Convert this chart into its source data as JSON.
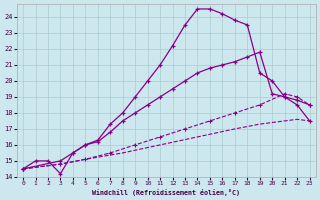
{
  "xlabel": "Windchill (Refroidissement éolien,°C)",
  "bg_color": "#cce8ee",
  "line_color": "#880088",
  "grid_color": "#aacccc",
  "xlim": [
    -0.5,
    23.5
  ],
  "ylim": [
    14,
    24.8
  ],
  "yticks": [
    14,
    15,
    16,
    17,
    18,
    19,
    20,
    21,
    22,
    23,
    24
  ],
  "xticks": [
    0,
    1,
    2,
    3,
    4,
    5,
    6,
    7,
    8,
    9,
    10,
    11,
    12,
    13,
    14,
    15,
    16,
    17,
    18,
    19,
    20,
    21,
    22,
    23
  ],
  "line1_x": [
    0,
    1,
    2,
    3,
    4,
    5,
    6,
    7,
    8,
    9,
    10,
    11,
    12,
    13,
    14,
    15,
    16,
    17,
    18,
    19,
    20,
    21,
    22,
    23
  ],
  "line1_y": [
    14.5,
    15.0,
    15.0,
    14.2,
    15.5,
    16.0,
    16.3,
    17.3,
    18.0,
    19.0,
    20.0,
    21.0,
    22.2,
    23.5,
    24.5,
    24.5,
    24.2,
    23.8,
    23.5,
    20.5,
    20.0,
    19.0,
    18.5,
    17.5
  ],
  "line2_x": [
    0,
    3,
    4,
    5,
    6,
    7,
    8,
    9,
    10,
    11,
    12,
    13,
    14,
    15,
    16,
    17,
    18,
    19,
    20,
    21,
    22,
    23
  ],
  "line2_y": [
    14.5,
    15.0,
    15.5,
    16.0,
    16.2,
    16.8,
    17.5,
    18.0,
    18.5,
    19.0,
    19.5,
    20.0,
    20.5,
    20.8,
    21.0,
    21.2,
    21.5,
    21.8,
    19.2,
    19.0,
    18.8,
    18.5
  ],
  "line3_x": [
    0,
    3,
    5,
    7,
    9,
    11,
    13,
    15,
    17,
    19,
    21,
    22,
    23
  ],
  "line3_y": [
    14.5,
    14.8,
    15.1,
    15.5,
    16.0,
    16.5,
    17.0,
    17.5,
    18.0,
    18.5,
    19.2,
    19.0,
    18.5
  ],
  "line4_x": [
    0,
    3,
    5,
    8,
    11,
    14,
    17,
    19,
    21,
    22,
    23
  ],
  "line4_y": [
    14.5,
    14.8,
    15.1,
    15.5,
    16.0,
    16.5,
    17.0,
    17.3,
    17.5,
    17.6,
    17.5
  ]
}
